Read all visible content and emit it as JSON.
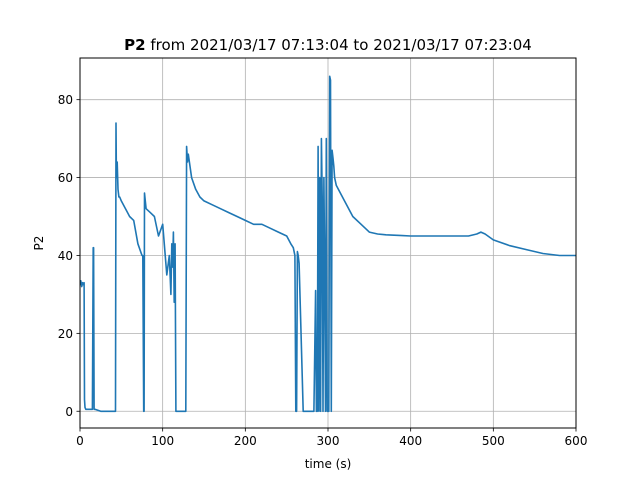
{
  "chart_data": {
    "type": "line",
    "title_bold": "P2",
    "title_rest": " from 2021/03/17 07:13:04 to 2021/03/17 07:23:04",
    "xlabel": "time (s)",
    "ylabel": "P2",
    "xlim": [
      0,
      600
    ],
    "ylim": [
      -4.3,
      90.7
    ],
    "xticks": [
      0,
      100,
      200,
      300,
      400,
      500,
      600
    ],
    "yticks": [
      0,
      20,
      40,
      60,
      80
    ],
    "grid": true,
    "legend": "none",
    "series": [
      {
        "color": "#1f77b4",
        "x": [
          0,
          1,
          2,
          3,
          4,
          5,
          5.5,
          6,
          7,
          8,
          15,
          16,
          16.5,
          17,
          18,
          25,
          35,
          43,
          43.5,
          44,
          45,
          46,
          47,
          48,
          50,
          55,
          60,
          65,
          70,
          75,
          76,
          77,
          77.5,
          78,
          79,
          80,
          85,
          90,
          95,
          100,
          105,
          108,
          110,
          111,
          112,
          113,
          114,
          115,
          116,
          117,
          118,
          119,
          120,
          125,
          128,
          129,
          130,
          131,
          135,
          140,
          145,
          150,
          160,
          170,
          180,
          190,
          200,
          210,
          220,
          230,
          240,
          250,
          255,
          258,
          260,
          261,
          262,
          263,
          264,
          265,
          270,
          275,
          280,
          283,
          285,
          286,
          287,
          288,
          289,
          290,
          291,
          292,
          293,
          294,
          295,
          296,
          297,
          298,
          299,
          300,
          301,
          302,
          303,
          304,
          305,
          306,
          307,
          308,
          310,
          320,
          330,
          340,
          350,
          360,
          370,
          380,
          390,
          400,
          420,
          440,
          460,
          470,
          480,
          485,
          490,
          500,
          520,
          540,
          560,
          580,
          600
        ],
        "y": [
          32.5,
          33.5,
          32,
          33,
          32.5,
          33,
          3,
          1,
          0.5,
          0.5,
          0.5,
          42,
          42,
          0.5,
          0.5,
          0,
          0,
          0,
          74,
          60,
          64,
          57,
          55,
          55,
          54,
          52,
          50,
          49,
          43,
          40,
          40,
          0,
          0,
          56,
          54,
          52,
          51,
          50,
          45,
          48,
          35,
          40,
          30,
          43,
          37,
          46,
          28,
          43,
          0,
          0,
          0,
          0,
          0,
          0,
          0,
          68,
          64,
          66,
          60,
          57,
          55,
          54,
          53,
          52,
          51,
          50,
          49,
          48,
          48,
          47,
          46,
          45,
          43,
          42,
          40,
          0,
          0,
          41,
          40,
          38,
          0,
          0,
          0,
          0,
          31,
          0,
          0,
          68,
          0,
          60,
          0,
          70,
          55,
          0,
          60,
          35,
          0,
          70,
          0,
          0,
          0,
          86,
          85,
          0,
          67,
          65,
          63,
          60,
          58,
          54,
          50,
          48,
          46,
          45.5,
          45.3,
          45.2,
          45.1,
          45,
          45,
          45,
          45,
          45,
          45.5,
          46,
          45.5,
          44,
          42.5,
          41.5,
          40.5,
          40,
          40
        ]
      }
    ]
  }
}
